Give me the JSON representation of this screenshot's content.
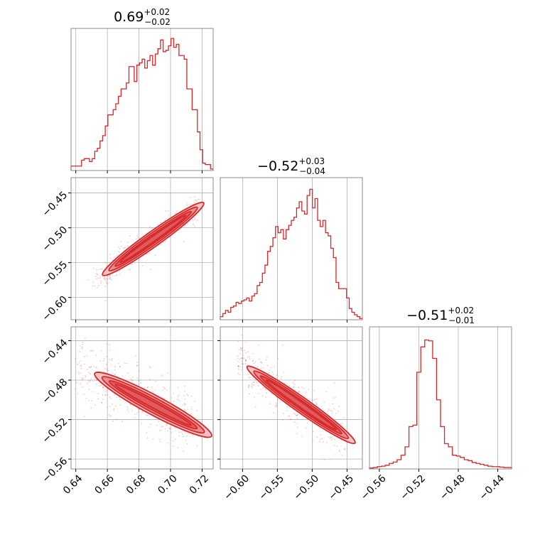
{
  "chart_data": {
    "type": "corner",
    "color": "#d62728",
    "fill_colors": [
      "#f4c4c5",
      "#e98c8e",
      "#df5b5e"
    ],
    "grid": true,
    "parameters": [
      {
        "title_value": "0.69",
        "title_plus": "+0.02",
        "title_minus": "−0.02",
        "range": [
          0.637,
          0.727
        ],
        "ticks": [
          0.64,
          0.66,
          0.68,
          0.7,
          0.72
        ],
        "tick_labels": [
          "0.64",
          "0.66",
          "0.68",
          "0.70",
          "0.72"
        ],
        "histogram": [
          6,
          6,
          6,
          6,
          14,
          16,
          16,
          12,
          16,
          26,
          30,
          40,
          47,
          60,
          75,
          75,
          82,
          90,
          100,
          110,
          110,
          118,
          140,
          140,
          120,
          142,
          145,
          150,
          138,
          148,
          155,
          142,
          157,
          164,
          176,
          160,
          162,
          168,
          178,
          166,
          170,
          155,
          155,
          150,
          110,
          110,
          82,
          82,
          52,
          28,
          10,
          8,
          8,
          2
        ],
        "hist_max": 180
      },
      {
        "title_value": "−0.52",
        "title_plus": "+0.03",
        "title_minus": "−0.04",
        "range": [
          -0.632,
          -0.428
        ],
        "ticks": [
          -0.6,
          -0.55,
          -0.5,
          -0.45
        ],
        "tick_labels": [
          "−0.60",
          "−0.55",
          "−0.50",
          "−0.45"
        ],
        "histogram": [
          5,
          10,
          15,
          12,
          20,
          22,
          28,
          26,
          30,
          32,
          35,
          30,
          38,
          42,
          55,
          60,
          75,
          88,
          110,
          118,
          132,
          150,
          140,
          145,
          130,
          145,
          152,
          160,
          165,
          180,
          190,
          175,
          170,
          200,
          210,
          180,
          195,
          160,
          150,
          160,
          140,
          135,
          115,
          100,
          60,
          50,
          50,
          50,
          35,
          18,
          12,
          8,
          5,
          2
        ],
        "hist_max": 215
      },
      {
        "title_value": "−0.51",
        "title_plus": "+0.02",
        "title_minus": "−0.01",
        "range": [
          -0.57,
          -0.426
        ],
        "ticks": [
          -0.56,
          -0.52,
          -0.48,
          -0.44
        ],
        "tick_labels": [
          "−0.56",
          "−0.52",
          "−0.48",
          "−0.44"
        ],
        "histogram": [
          2,
          3,
          5,
          6,
          8,
          12,
          15,
          20,
          30,
          48,
          92,
          95,
          210,
          265,
          280,
          278,
          240,
          150,
          92,
          55,
          48,
          30,
          28,
          25,
          20,
          18,
          14,
          12,
          10,
          8,
          6,
          5,
          5,
          4,
          3,
          3
        ],
        "hist_max": 290
      }
    ],
    "pairs": [
      {
        "x": 0,
        "y": 1,
        "slope": 1.62,
        "center": [
          0.689,
          -0.516
        ],
        "spread_along": 0.034,
        "spread_across": 0.0045,
        "x_extent": [
          0.652,
          0.716
        ]
      },
      {
        "x": 0,
        "y": 2,
        "slope": -0.86,
        "center": [
          0.689,
          -0.505
        ],
        "spread_along": 0.034,
        "spread_across": 0.0075,
        "x_extent": [
          0.642,
          0.716
        ]
      },
      {
        "x": 1,
        "y": 2,
        "slope": -0.5,
        "center": [
          -0.516,
          -0.505
        ],
        "spread_along": 0.062,
        "spread_across": 0.0055,
        "x_extent": [
          -0.61,
          -0.455
        ]
      }
    ]
  }
}
